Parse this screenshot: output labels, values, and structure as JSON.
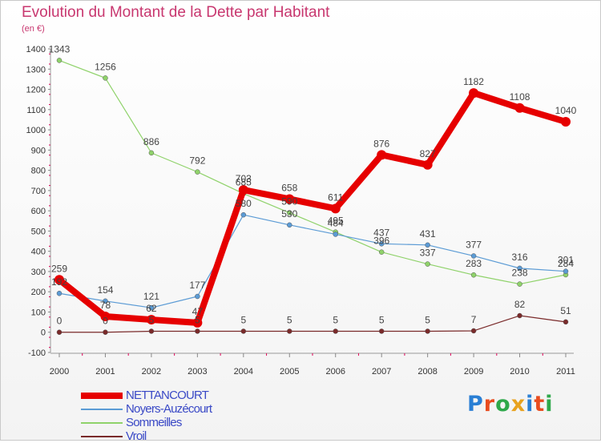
{
  "title": "Evolution du Montant de la Dette par Habitant",
  "subtitle": "(en €)",
  "brand": {
    "text": "Proxiti",
    "colors": [
      "#2a7fd4",
      "#e84c1f",
      "#2ea84a",
      "#e8a21f",
      "#2a7fd4",
      "#e84c1f",
      "#2ea84a"
    ]
  },
  "chart_data": {
    "type": "line",
    "title": "Evolution du Montant de la Dette par Habitant",
    "subtitle": "(en €)",
    "x": [
      "2000",
      "2001",
      "2002",
      "2003",
      "2004",
      "2005",
      "2006",
      "2007",
      "2008",
      "2009",
      "2010",
      "2011"
    ],
    "ylim": [
      -100,
      1400
    ],
    "yticks": [
      "-100",
      "0",
      "100",
      "200",
      "300",
      "400",
      "500",
      "600",
      "700",
      "800",
      "900",
      "1000",
      "1100",
      "1200",
      "1300",
      "1400"
    ],
    "grid": false,
    "legend_position": "bottom-left",
    "series": [
      {
        "name": "NETTANCOURT",
        "color": "#e60000",
        "values": [
          259,
          78,
          62,
          47,
          703,
          658,
          611,
          876,
          827,
          1182,
          1108,
          1040
        ],
        "labels": [
          "259",
          "78",
          "62",
          "47",
          "703",
          "658",
          "611",
          "876",
          "827",
          "1182",
          "1108",
          "1040"
        ]
      },
      {
        "name": "Noyers-Auzécourt",
        "color": "#5b9bd5",
        "values": [
          192,
          154,
          121,
          177,
          580,
          530,
          484,
          437,
          431,
          377,
          316,
          301
        ],
        "labels": [
          "192",
          "154",
          "121",
          "177",
          "580",
          "530",
          "484",
          "437",
          "431",
          "377",
          "316",
          "301"
        ]
      },
      {
        "name": "Sommeilles",
        "color": "#8fd26a",
        "values": [
          1343,
          1256,
          886,
          792,
          685,
          590,
          495,
          396,
          337,
          283,
          238,
          284
        ],
        "labels": [
          "1343",
          "1256",
          "886",
          "792",
          "685",
          "590",
          "495",
          "396",
          "337",
          "283",
          "238",
          "284"
        ]
      },
      {
        "name": "Vroil",
        "color": "#7a2a2a",
        "values": [
          0,
          0,
          5,
          5,
          5,
          5,
          5,
          5,
          5,
          7,
          82,
          51
        ],
        "labels": [
          "0",
          "0",
          "5",
          "5",
          "5",
          "5",
          "5",
          "5",
          "5",
          "7",
          "82",
          "51"
        ]
      }
    ]
  }
}
